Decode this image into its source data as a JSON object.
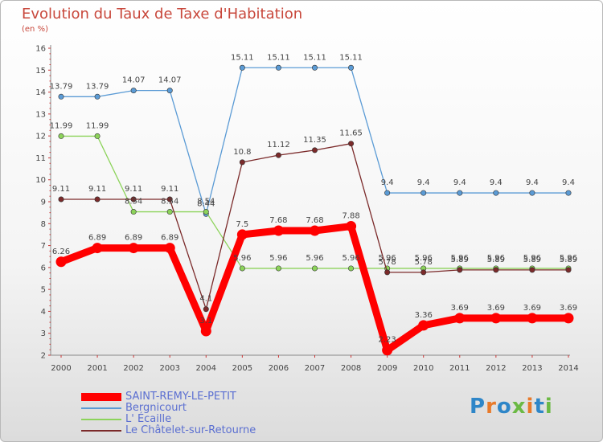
{
  "title": "Evolution du Taux de Taxe d'Habitation",
  "unit_label": "(en %)",
  "logo": {
    "text": "Proxiti",
    "colors": [
      "#2e86c8",
      "#e87a2a",
      "#2e86c8",
      "#6bb944",
      "#e87a2a",
      "#2e86c8",
      "#6bb944"
    ]
  },
  "chart_data": {
    "type": "line",
    "title": "Evolution du Taux de Taxe d'Habitation",
    "ylabel": "(en %)",
    "xlabel": "",
    "ylim": [
      2,
      16
    ],
    "yticks": [
      "2",
      "3",
      "4",
      "5",
      "6",
      "7",
      "8",
      "9",
      "10",
      "11",
      "12",
      "13",
      "14",
      "15",
      "16"
    ],
    "categories": [
      "2000",
      "2001",
      "2002",
      "2003",
      "2004",
      "2005",
      "2006",
      "2007",
      "2008",
      "2009",
      "2010",
      "2011",
      "2012",
      "2013",
      "2014"
    ],
    "grid": false,
    "legend_position": "bottom-left",
    "series": [
      {
        "name": "SAINT-REMY-LE-PETIT",
        "color": "#ff0000",
        "values": [
          6.26,
          6.89,
          6.89,
          6.89,
          3.1,
          7.5,
          7.68,
          7.68,
          7.88,
          2.23,
          3.36,
          3.69,
          3.69,
          3.69,
          3.69
        ],
        "labels": [
          "6.26",
          "6.89",
          "6.89",
          "6.89",
          "3.1",
          "7.5",
          "7.68",
          "7.68",
          "7.88",
          "2.23",
          "3.36",
          "3.69",
          "3.69",
          "3.69",
          "3.69"
        ]
      },
      {
        "name": "Bergnicourt",
        "color": "#5b9bd5",
        "values": [
          13.79,
          13.79,
          14.07,
          14.07,
          8.44,
          15.11,
          15.11,
          15.11,
          15.11,
          9.4,
          9.4,
          9.4,
          9.4,
          9.4,
          9.4
        ],
        "labels": [
          "13.79",
          "13.79",
          "14.07",
          "14.07",
          "8.44",
          "15.11",
          "15.11",
          "15.11",
          "15.11",
          "9.4",
          "9.4",
          "9.4",
          "9.4",
          "9.4",
          "9.4"
        ]
      },
      {
        "name": "L' Écaille",
        "color": "#8cd35a",
        "values": [
          11.99,
          11.99,
          8.54,
          8.54,
          8.54,
          5.96,
          5.96,
          5.96,
          5.96,
          5.96,
          5.96,
          5.96,
          5.96,
          5.96,
          5.96
        ],
        "labels": [
          "11.99",
          "11.99",
          "8.54",
          "8.54",
          "8.54",
          "5.96",
          "5.96",
          "5.96",
          "5.96",
          "5.96",
          "5.96",
          "5.96",
          "5.96",
          "5.96",
          "5.96"
        ]
      },
      {
        "name": "Le Châtelet-sur-Retourne",
        "color": "#7b2a2a",
        "values": [
          9.11,
          9.11,
          9.11,
          9.11,
          4.1,
          10.8,
          11.12,
          11.35,
          11.65,
          5.78,
          5.78,
          5.89,
          5.89,
          5.89,
          5.89
        ],
        "labels": [
          "9.11",
          "9.11",
          "9.11",
          "9.11",
          "4.1",
          "10.8",
          "11.12",
          "11.35",
          "11.65",
          "5.78",
          "5.78",
          "5.89",
          "5.89",
          "5.89",
          "5.89"
        ]
      }
    ]
  }
}
